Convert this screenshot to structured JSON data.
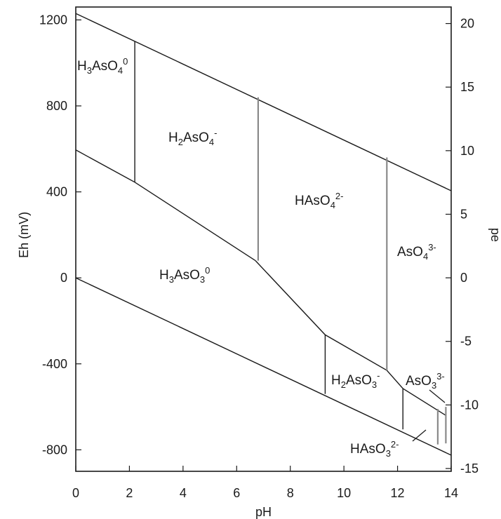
{
  "chart_data": {
    "type": "line",
    "title": "",
    "xlabel": "pH",
    "ylabel_left": "Eh (mV)",
    "ylabel_right": "pe",
    "xlim": [
      0,
      14
    ],
    "ylim_left": [
      -900,
      1260
    ],
    "ylim_right": [
      -15.22,
      21.3
    ],
    "x_ticks": [
      "0",
      "2",
      "4",
      "6",
      "8",
      "10",
      "12",
      "14"
    ],
    "y_ticks_left": [
      "1200",
      "800",
      "400",
      "0",
      "-400",
      "-800"
    ],
    "y_ticks_right": [
      "20",
      "15",
      "10",
      "5",
      "0",
      "-5",
      "-10",
      "-15"
    ],
    "grid": false,
    "boundaries": [
      {
        "name": "water-upper",
        "x": [
          0,
          14
        ],
        "y": [
          1230,
          405
        ]
      },
      {
        "name": "water-lower",
        "x": [
          0,
          14
        ],
        "y": [
          0,
          -825
        ]
      },
      {
        "name": "as5-as3-1",
        "x": [
          0,
          2.2,
          6.7
        ],
        "y": [
          595,
          445,
          80
        ]
      },
      {
        "name": "as5-as3-2",
        "x": [
          6.7,
          9.3,
          11.6,
          12.2,
          13.8
        ],
        "y": [
          80,
          -265,
          -430,
          -515,
          -640
        ]
      },
      {
        "name": "h3aso4-h2aso4",
        "x": [
          2.2,
          2.2
        ],
        "y": [
          1100,
          445
        ]
      },
      {
        "name": "h2aso4-haso4",
        "x": [
          6.8,
          6.8
        ],
        "y": [
          840,
          80
        ]
      },
      {
        "name": "haso4-aso4",
        "x": [
          11.6,
          11.6
        ],
        "y": [
          560,
          -430
        ]
      },
      {
        "name": "h3aso3-h2aso3",
        "x": [
          9.3,
          9.3
        ],
        "y": [
          -265,
          -540
        ]
      },
      {
        "name": "h2aso3-haso3",
        "x": [
          12.2,
          12.2
        ],
        "y": [
          -515,
          -705
        ]
      },
      {
        "name": "haso3-aso3-a",
        "x": [
          13.5,
          13.5
        ],
        "y": [
          -610,
          -775
        ]
      },
      {
        "name": "haso3-aso3-b",
        "x": [
          13.8,
          13.8
        ],
        "y": [
          -600,
          -770
        ]
      }
    ],
    "annotations": [
      {
        "id": "h3aso4",
        "pre": "H",
        "s1": "3",
        "mid": "AsO",
        "s2": "4",
        "sup": "0"
      },
      {
        "id": "h2aso4",
        "pre": "H",
        "s1": "2",
        "mid": "AsO",
        "s2": "4",
        "sup": "-"
      },
      {
        "id": "haso4",
        "pre": "HAsO",
        "s1": "",
        "mid": "",
        "s2": "4",
        "sup": "2-"
      },
      {
        "id": "aso4",
        "pre": "AsO",
        "s1": "",
        "mid": "",
        "s2": "4",
        "sup": "3-"
      },
      {
        "id": "h3aso3",
        "pre": "H",
        "s1": "3",
        "mid": "AsO",
        "s2": "3",
        "sup": "0"
      },
      {
        "id": "h2aso3",
        "pre": "H",
        "s1": "2",
        "mid": "AsO",
        "s2": "3",
        "sup": "-"
      },
      {
        "id": "aso3",
        "pre": "AsO",
        "s1": "",
        "mid": "",
        "s2": "3",
        "sup": "3-"
      },
      {
        "id": "haso3",
        "pre": "HAsO",
        "s1": "",
        "mid": "",
        "s2": "3",
        "sup": "2-"
      }
    ]
  }
}
